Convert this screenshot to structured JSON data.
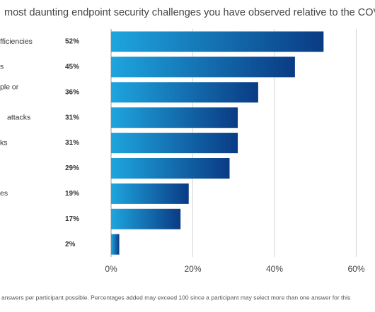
{
  "chart_data": {
    "type": "bar",
    "orientation": "horizontal",
    "title": "most daunting endpoint security challenges you have observed relative to the COVID-",
    "categories": [
      "fficiencies",
      "s",
      "ple or",
      "attacks",
      "ks",
      null,
      "es",
      null,
      null
    ],
    "values": [
      52,
      45,
      36,
      31,
      31,
      29,
      19,
      17,
      2
    ],
    "value_labels": [
      "52%",
      "45%",
      "36%",
      "31%",
      "31%",
      "29%",
      "19%",
      "17%",
      "2%"
    ],
    "gradient": [
      "#1ea5de",
      "#0a3b84"
    ],
    "xlim": [
      0,
      64.5
    ],
    "xticks": [
      {
        "value": 0,
        "label": "0%"
      },
      {
        "value": 20,
        "label": "20%"
      },
      {
        "value": 40,
        "label": "40%"
      },
      {
        "value": 60,
        "label": "60%"
      }
    ],
    "grid": true,
    "footnote": "answers per participant possible. Percentages added may exceed 100 since a participant may select more than one answer for this"
  }
}
